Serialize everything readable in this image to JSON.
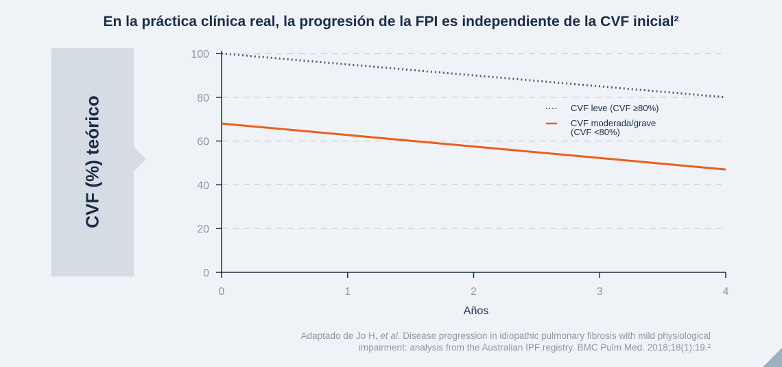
{
  "title": "En la práctica clínica real, la progresión de la FPI es independiente de la CVF inicial²",
  "source": {
    "prefix": "Adaptado de Jo H, ",
    "etal": "et al",
    "line1_rest": ". Disease progression in idiopathic pulmonary fibrosis with mild physiological",
    "line2": "impairment: analysis from the Australian IPF registry. BMC Pulm Med. 2018;18(1):19.²"
  },
  "colors": {
    "title": "#1b2c47",
    "axis": "#1b2c47",
    "series_dotted": "#4a5e78",
    "series_solid": "#e8601c",
    "grid": "#c7d0d9",
    "tick_text": "#8c98a6"
  },
  "chart_data": {
    "type": "line",
    "ylabel": "CVF (%) teórico",
    "xlabel": "Años",
    "xlim": [
      0,
      4
    ],
    "ylim": [
      0,
      100
    ],
    "x_ticks": [
      "0",
      "1",
      "2",
      "3",
      "4"
    ],
    "y_ticks": [
      "0",
      "20",
      "40",
      "60",
      "80",
      "100"
    ],
    "grid": "horizontal dashed",
    "legend_position": "top-right",
    "series": [
      {
        "name": "CVF leve (CVF ≥80%)",
        "style": "dotted",
        "color": "#4a5e78",
        "x": [
          0,
          4
        ],
        "y": [
          100,
          80
        ]
      },
      {
        "name": "CVF moderada/grave (CVF <80%)",
        "name_line1": "CVF moderada/grave",
        "name_line2": "(CVF <80%)",
        "style": "solid",
        "color": "#e8601c",
        "x": [
          0,
          4
        ],
        "y": [
          68,
          47
        ]
      }
    ]
  }
}
